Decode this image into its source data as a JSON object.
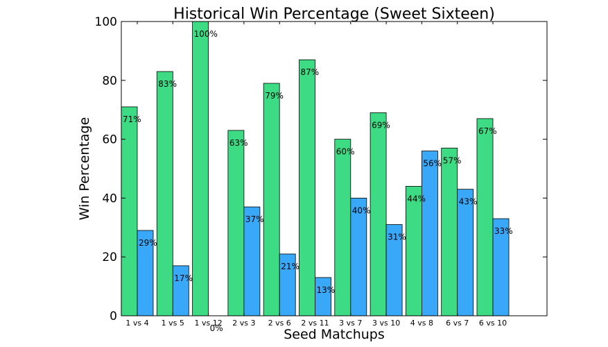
{
  "chart_data": {
    "type": "bar",
    "title": "Historical Win Percentage (Sweet Sixteen)",
    "xlabel": "Seed Matchups",
    "ylabel": "Win Percentage",
    "ylim": [
      0,
      100
    ],
    "yticks": [
      0,
      20,
      40,
      60,
      80,
      100
    ],
    "categories": [
      "1 vs 4",
      "1 vs 5",
      "1 vs 12",
      "2 vs 3",
      "2 vs 6",
      "2 vs 11",
      "3 vs 7",
      "3 vs 10",
      "4 vs 8",
      "6 vs 7",
      "6 vs 10"
    ],
    "series": [
      {
        "values": [
          71,
          83,
          100,
          63,
          79,
          87,
          60,
          69,
          44,
          57,
          67
        ],
        "labels": [
          "71%",
          "83%",
          "100%",
          "63%",
          "79%",
          "87%",
          "60%",
          "69%",
          "44%",
          "57%",
          "67%"
        ],
        "color": "#3ddc84"
      },
      {
        "values": [
          29,
          17,
          0,
          37,
          21,
          13,
          40,
          31,
          56,
          43,
          33
        ],
        "labels": [
          "29%",
          "17%",
          "0%",
          "37%",
          "21%",
          "13%",
          "40%",
          "31%",
          "56%",
          "43%",
          "33%"
        ],
        "color": "#3aa8f8"
      }
    ],
    "grid": false,
    "legend": "none"
  }
}
